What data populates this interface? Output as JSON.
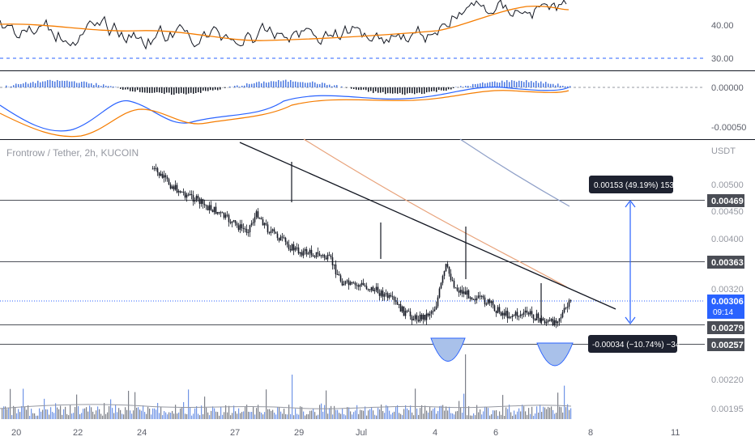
{
  "chart": {
    "title": "Frontrow / Tether, 2h, KUCOIN",
    "currency": "USDT"
  },
  "rsi_panel": {
    "axis_labels": [
      "40.00",
      "30.00"
    ],
    "level_value": 30
  },
  "macd_panel": {
    "axis_labels": [
      "0.00000",
      "-0.00050"
    ]
  },
  "price_panel": {
    "axis_ticks": [
      "0.00500",
      "0.00450",
      "0.00400",
      "0.00320",
      "0.00220",
      "0.00195"
    ],
    "current_price": {
      "label": "0.00306",
      "countdown": "09:14",
      "value": 0.00306
    },
    "levels": [
      {
        "label": "0.00469",
        "value": 0.00469
      },
      {
        "label": "0.00363",
        "value": 0.00363
      },
      {
        "label": "0.00279",
        "value": 0.00279
      },
      {
        "label": "0.00257",
        "value": 0.00257
      }
    ],
    "measure_up": {
      "text": "0.00153 (49.19%) 153"
    },
    "measure_down": {
      "text": "-0.00034 (−10.74%) −34"
    }
  },
  "time_axis": [
    "20",
    "22",
    "24",
    "27",
    "29",
    "Jul",
    "4",
    "6",
    "8",
    "11"
  ],
  "colors": {
    "candle": "#131722",
    "ma_orange": "#f57c00",
    "ma_blue": "#2962ff",
    "accent": "#2962ff",
    "level_label_bg": "#4a4d55",
    "tooltip_bg": "#1e2230"
  },
  "chart_data": {
    "type": "candlestick",
    "title": "Frontrow / Tether, 2h, KUCOIN",
    "x_ticks": [
      "20",
      "22",
      "24",
      "27",
      "29",
      "Jul",
      "4",
      "6",
      "8",
      "11"
    ],
    "y_unit": "USDT",
    "y_ticks": [
      0.005,
      0.0045,
      0.004,
      0.0032,
      0.0022,
      0.00195
    ],
    "horizontal_levels": [
      0.00469,
      0.00363,
      0.00279,
      0.00257
    ],
    "last_price": 0.00306,
    "close_path": [
      0.0052,
      0.00505,
      0.0049,
      0.0048,
      0.00472,
      0.0046,
      0.00452,
      0.0044,
      0.00428,
      0.0042,
      0.00448,
      0.00422,
      0.0041,
      0.00395,
      0.00386,
      0.00384,
      0.0038,
      0.00372,
      0.00338,
      0.0033,
      0.00332,
      0.00325,
      0.00318,
      0.00305,
      0.00288,
      0.00278,
      0.00281,
      0.00296,
      0.00362,
      0.00325,
      0.00318,
      0.0031,
      0.00304,
      0.0029,
      0.00283,
      0.00284,
      0.00286,
      0.00276,
      0.0027,
      0.00282,
      0.00306
    ],
    "annotations": [
      "0.00153 (49.19%) 153",
      "-0.00034 (−10.74%) −34"
    ]
  }
}
